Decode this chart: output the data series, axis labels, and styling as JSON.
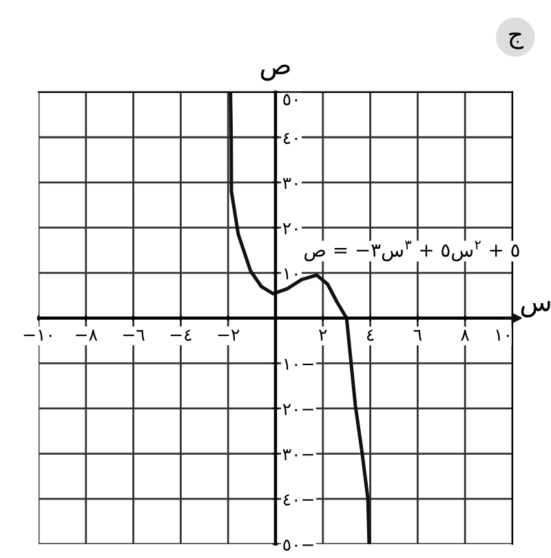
{
  "chart_data": {
    "type": "line",
    "xlabel": "س",
    "ylabel": "ص",
    "annotations": [
      "ج",
      {
        "text": "ص = −٣س$^{٣}$ + ٥س$^{٢}$ + ٥",
        "x": 1.74,
        "y": 9.5
      }
    ],
    "series": [
      {
        "color": "#111111",
        "x": [
          -1.9,
          -1.87,
          -1.86,
          -1.57,
          -1.05,
          -0.6,
          -0.1,
          0.5,
          1.1,
          1.74,
          2.2,
          2.6,
          3.0,
          3.37,
          3.66,
          3.9,
          3.95
        ],
        "values": [
          50,
          40,
          28,
          18.5,
          10.4,
          7,
          5.4,
          6.5,
          8.5,
          9.5,
          7.5,
          3.5,
          0,
          -19.3,
          -30,
          -40,
          -50
        ]
      }
    ],
    "xlim": [
      -10,
      10
    ],
    "ylim": [
      -50,
      50
    ],
    "xticks": [
      {
        "value": -10,
        "label": "−١٠"
      },
      {
        "value": -8,
        "label": "−٨"
      },
      {
        "value": -6,
        "label": "−٦"
      },
      {
        "value": -4,
        "label": "−٤"
      },
      {
        "value": -2,
        "label": "−٢"
      },
      {
        "value": 0,
        "label": null
      },
      {
        "value": 2,
        "label": "٢"
      },
      {
        "value": 4,
        "label": "٤"
      },
      {
        "value": 6,
        "label": "٦"
      },
      {
        "value": 8,
        "label": "٨"
      },
      {
        "value": 10,
        "label": "١٠"
      }
    ],
    "yticks": [
      {
        "value": -50,
        "label": "٥٠−"
      },
      {
        "value": -40,
        "label": "٤٠−"
      },
      {
        "value": -30,
        "label": "٣٠−"
      },
      {
        "value": -20,
        "label": "٢٠−"
      },
      {
        "value": -10,
        "label": "١٠−"
      },
      {
        "value": 0,
        "label": null
      },
      {
        "value": 10,
        "label": "١٠"
      },
      {
        "value": 20,
        "label": "٢٠"
      },
      {
        "value": 30,
        "label": "٣٠"
      },
      {
        "value": 40,
        "label": "٤٠"
      },
      {
        "value": 50,
        "label": "٥٠"
      }
    ],
    "grid": true,
    "marker": "none",
    "line_style": "solid",
    "legend": false
  }
}
